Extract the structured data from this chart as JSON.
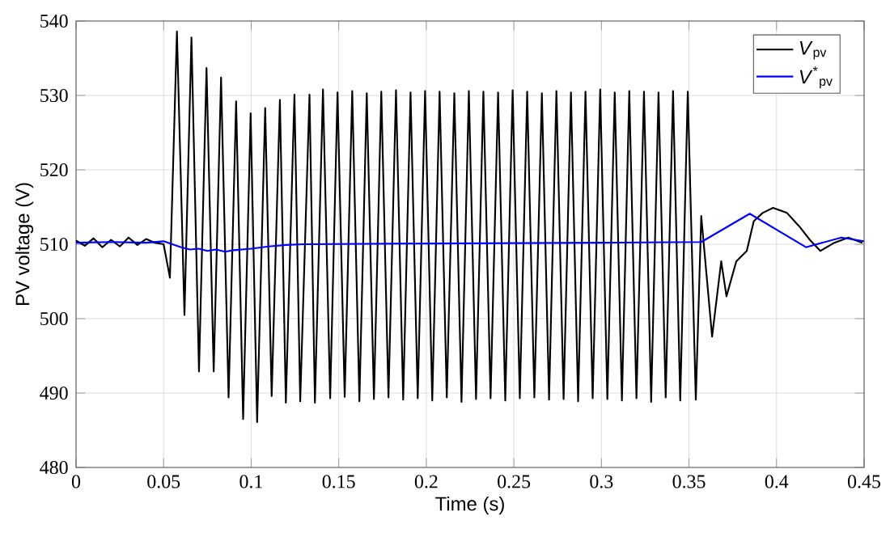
{
  "chart_data": {
    "type": "line",
    "xlabel": "Time (s)",
    "ylabel": "PV voltage (V)",
    "xlim": [
      0,
      0.45
    ],
    "ylim": [
      480,
      540
    ],
    "xticks": [
      0,
      0.05,
      0.1,
      0.15,
      0.2,
      0.25,
      0.3,
      0.35,
      0.4,
      0.45
    ],
    "yticks": [
      480,
      490,
      500,
      510,
      520,
      530,
      540
    ],
    "grid": true,
    "legend": "top right",
    "line_style": "solid",
    "marker": "none",
    "series": [
      {
        "name": "*V*$_{pv}$",
        "color": "#000000",
        "x": [
          0,
          0.005,
          0.01,
          0.015,
          0.02,
          0.025,
          0.03,
          0.035,
          0.04,
          0.045,
          0.05,
          0.0536,
          0.0576,
          0.0619,
          0.0659,
          0.0702,
          0.0745,
          0.0786,
          0.0828,
          0.0871,
          0.0914,
          0.0954,
          0.0997,
          0.1034,
          0.108,
          0.1117,
          0.1164,
          0.1198,
          0.1247,
          0.128,
          0.1333,
          0.1364,
          0.141,
          0.1451,
          0.1493,
          0.1534,
          0.1577,
          0.1618,
          0.166,
          0.1701,
          0.1743,
          0.1784,
          0.1827,
          0.1868,
          0.191,
          0.1951,
          0.1993,
          0.2034,
          0.2076,
          0.2117,
          0.216,
          0.2201,
          0.2243,
          0.2284,
          0.2326,
          0.2367,
          0.241,
          0.2451,
          0.2493,
          0.2534,
          0.2576,
          0.2617,
          0.266,
          0.2701,
          0.2743,
          0.2784,
          0.2826,
          0.2867,
          0.2909,
          0.295,
          0.2993,
          0.3034,
          0.3076,
          0.3117,
          0.3159,
          0.32,
          0.3243,
          0.3284,
          0.3326,
          0.3367,
          0.3409,
          0.345,
          0.3493,
          0.3539,
          0.357,
          0.3632,
          0.3684,
          0.3714,
          0.377,
          0.383,
          0.387,
          0.392,
          0.398,
          0.406,
          0.413,
          0.419,
          0.425,
          0.433,
          0.441,
          0.449
        ],
        "values": [
          510.5,
          509.8,
          510.8,
          509.6,
          510.6,
          509.7,
          510.9,
          509.9,
          510.7,
          510.2,
          510,
          505.5,
          538.6,
          500.5,
          537.8,
          492.9,
          533.7,
          492.9,
          532.4,
          489.4,
          529.2,
          486.5,
          527.6,
          486.1,
          528.3,
          489.6,
          529.4,
          488.7,
          530.1,
          488.9,
          530.1,
          488.7,
          530.8,
          489.3,
          530.4,
          489.5,
          530.6,
          488.9,
          530.3,
          489.2,
          530.5,
          489.4,
          530.7,
          489.1,
          530.4,
          489.3,
          530.6,
          489.0,
          530.5,
          489.4,
          530.3,
          488.8,
          530.6,
          489.2,
          530.5,
          489.3,
          530.4,
          489.0,
          530.7,
          489.3,
          530.5,
          489.4,
          530.3,
          489.1,
          530.6,
          489.2,
          530.4,
          488.9,
          530.5,
          489.3,
          530.8,
          489.2,
          530.4,
          489.0,
          530.6,
          489.3,
          530.5,
          488.8,
          530.4,
          489.4,
          530.6,
          489.0,
          530.5,
          489.1,
          513.8,
          497.6,
          507.7,
          503,
          507.7,
          509.1,
          513.1,
          514.2,
          514.9,
          514.2,
          512.4,
          510.6,
          509.1,
          510.2,
          510.9,
          510.2
        ]
      },
      {
        "name": "*V*$^{*}$$_{pv}$",
        "color": "#0000ff",
        "x": [
          0,
          0.02,
          0.04,
          0.05,
          0.055,
          0.06,
          0.065,
          0.07,
          0.075,
          0.08,
          0.085,
          0.09,
          0.1,
          0.11,
          0.12,
          0.13,
          0.2,
          0.3,
          0.357,
          0.3847,
          0.4168,
          0.437,
          0.45
        ],
        "values": [
          510.2,
          510.3,
          510.2,
          510.4,
          510.0,
          509.6,
          509.3,
          509.4,
          509.1,
          509.3,
          509.0,
          509.2,
          509.4,
          509.7,
          509.9,
          510.0,
          510.1,
          510.2,
          510.3,
          514.1,
          509.6,
          510.9,
          510.4
        ]
      }
    ]
  }
}
